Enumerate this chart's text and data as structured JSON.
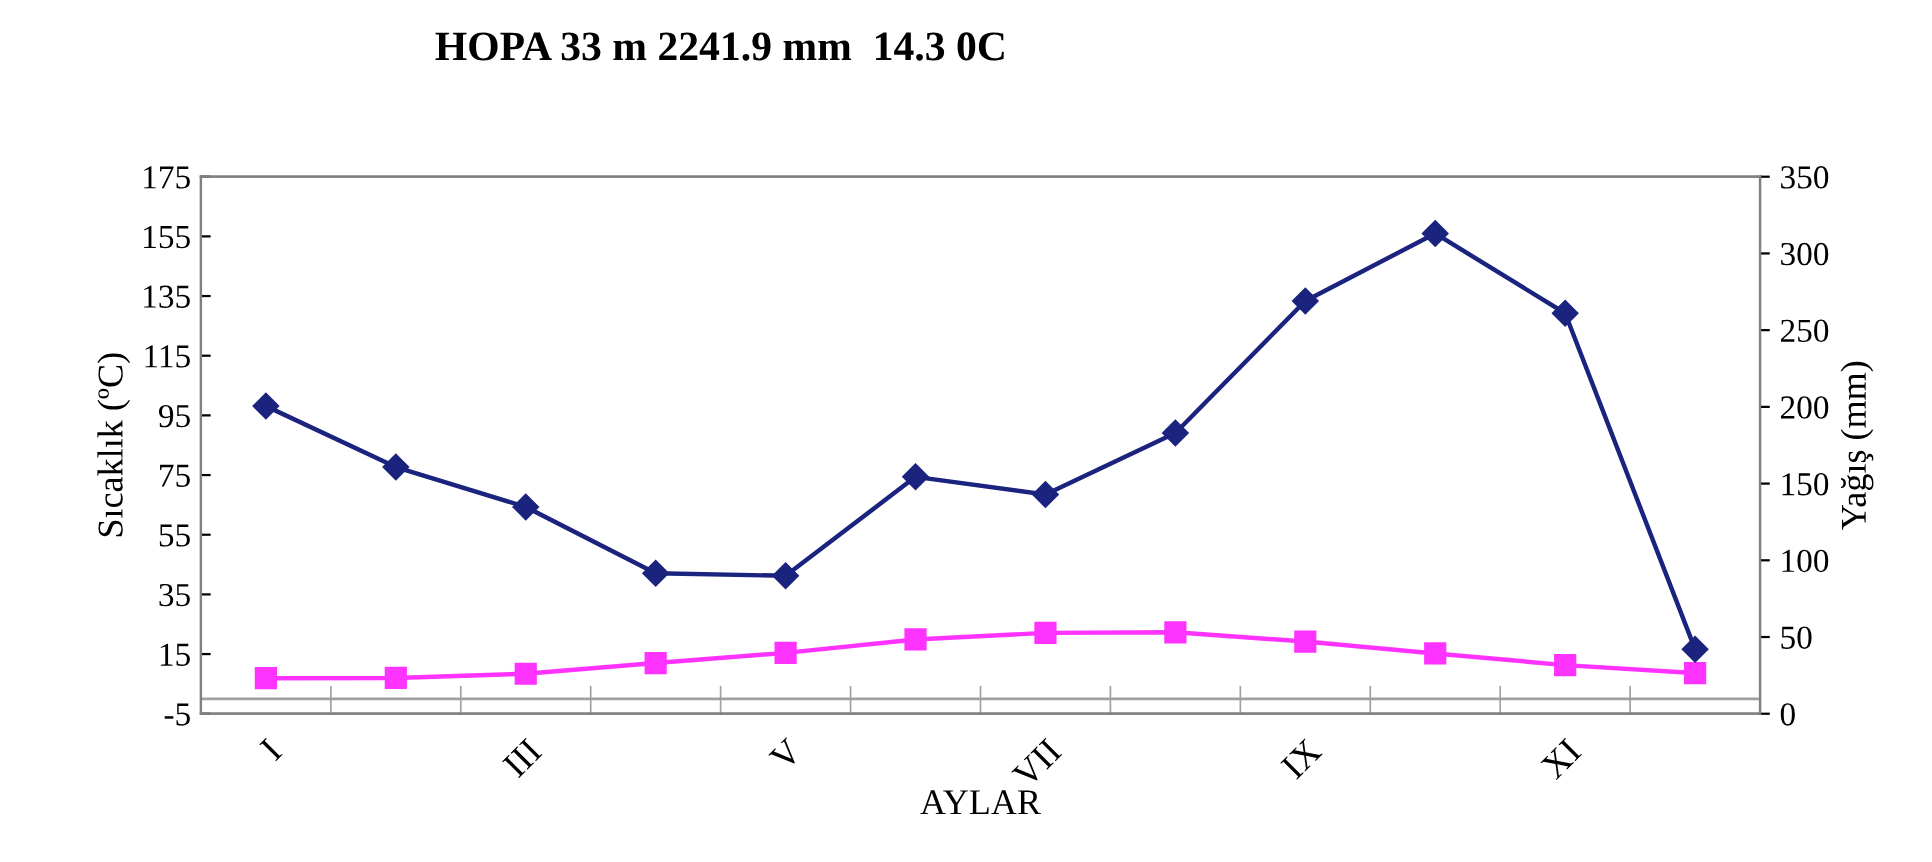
{
  "chart_data": {
    "type": "line",
    "title": "HOPA 33 m 2241.9 mm  14.3 0C",
    "xlabel": "AYLAR",
    "ylabel": "Sıcaklık (ºC)",
    "y2label": "Yağış (mm)",
    "categories": [
      "I",
      null,
      "III",
      null,
      "V",
      null,
      "VII",
      null,
      "IX",
      null,
      "XI",
      null
    ],
    "series": [
      {
        "color": "#1a237e",
        "axis": "y2",
        "marker": "diamond",
        "values": [
          200.5,
          160.8,
          134.8,
          91.6,
          89.9,
          154.4,
          142.9,
          183,
          269,
          313,
          261,
          42
        ]
      },
      {
        "color": "#ff33ff",
        "axis": "y",
        "marker": "square",
        "values": [
          6.9,
          7.0,
          8.4,
          12.0,
          15.4,
          19.9,
          22.1,
          22.3,
          19.2,
          15.2,
          11.3,
          8.6
        ]
      }
    ],
    "ylim": [
      -5,
      175
    ],
    "yticks": [
      -5,
      15,
      35,
      55,
      75,
      95,
      115,
      135,
      155,
      175
    ],
    "y2lim": [
      0,
      350
    ],
    "y2ticks": [
      0,
      50,
      100,
      150,
      200,
      250,
      300,
      350
    ],
    "ref_lines": [
      {
        "axis": "y",
        "value": 0,
        "color": "#a0a0a0"
      }
    ],
    "grid": false,
    "legend": false,
    "line_style": "solid"
  }
}
